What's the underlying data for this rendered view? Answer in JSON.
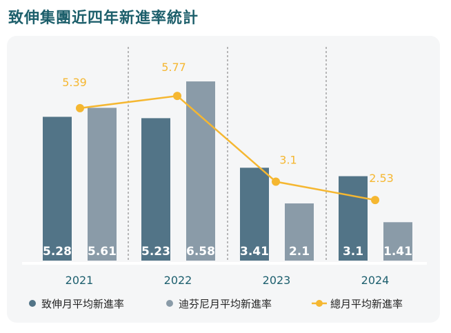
{
  "title": "致伸集團近四年新進率統計",
  "chart_data": {
    "type": "bar+line",
    "title": "致伸集團近四年新進率統計",
    "categories": [
      "2021",
      "2022",
      "2023",
      "2024"
    ],
    "series": [
      {
        "name": "致伸月平均新進率",
        "type": "bar",
        "color": "#527487",
        "values": [
          5.28,
          5.23,
          3.41,
          3.1
        ]
      },
      {
        "name": "迪芬尼月平均新進率",
        "type": "bar",
        "color": "#8a9ba8",
        "values": [
          5.61,
          6.58,
          2.1,
          1.41
        ]
      },
      {
        "name": "總月平均新進率",
        "type": "line",
        "color": "#f5b731",
        "values": [
          5.39,
          5.77,
          3.1,
          2.53
        ]
      }
    ],
    "legend": "bottom",
    "grid": false
  }
}
